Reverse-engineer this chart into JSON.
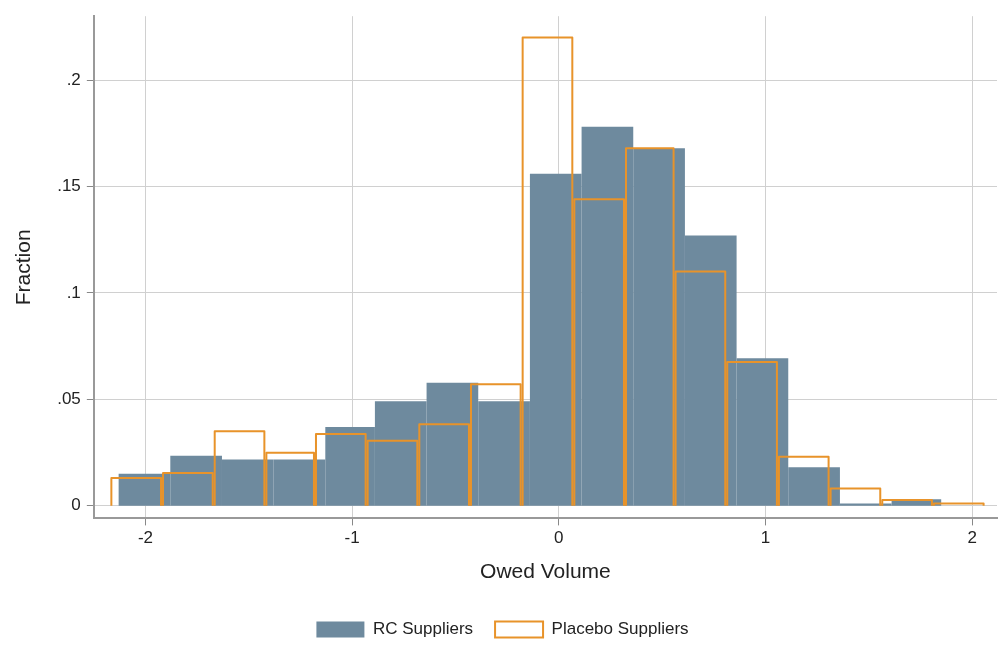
{
  "chart_data": {
    "type": "histogram",
    "xlabel": "Owed Volume",
    "ylabel": "Fraction",
    "xlim": [
      -2.25,
      2.12
    ],
    "ylim": [
      -0.006,
      0.23
    ],
    "xticks": [
      -2,
      -1,
      0,
      1,
      2
    ],
    "yticks": [
      0,
      {
        "value": 0.05,
        "label": ".05"
      },
      {
        "value": 0.1,
        "label": ".1"
      },
      {
        "value": 0.15,
        "label": ".15"
      },
      {
        "value": 0.2,
        "label": ".2"
      }
    ],
    "grid": true,
    "legend": "bottom",
    "bins": [
      -2.13,
      -1.88,
      -1.63,
      -1.38,
      -1.13,
      -0.89,
      -0.64,
      -0.39,
      -0.14,
      0.11,
      0.36,
      0.61,
      0.86,
      1.11,
      1.36,
      1.61,
      1.85
    ],
    "series": [
      {
        "name": "RC Suppliers",
        "color": "#6e8a9e",
        "values": [
          0.015,
          0.0235,
          0.0217,
          0.0217,
          0.037,
          0.049,
          0.0577,
          0.049,
          0.156,
          0.178,
          0.168,
          0.127,
          0.0693,
          0.018,
          0.001,
          0.003
        ]
      },
      {
        "name": "Placebo Suppliers",
        "color": "#e8932a",
        "bins": [
          -2.17,
          -1.92,
          -1.67,
          -1.42,
          -1.18,
          -0.93,
          -0.68,
          -0.43,
          -0.18,
          0.07,
          0.32,
          0.56,
          0.81,
          1.06,
          1.31,
          1.56,
          1.81,
          2.06
        ],
        "values": [
          0.013,
          0.0153,
          0.035,
          0.0249,
          0.0337,
          0.0305,
          0.0383,
          0.057,
          0.22,
          0.144,
          0.168,
          0.11,
          0.0675,
          0.023,
          0.008,
          0.0026,
          0.001
        ]
      }
    ]
  }
}
